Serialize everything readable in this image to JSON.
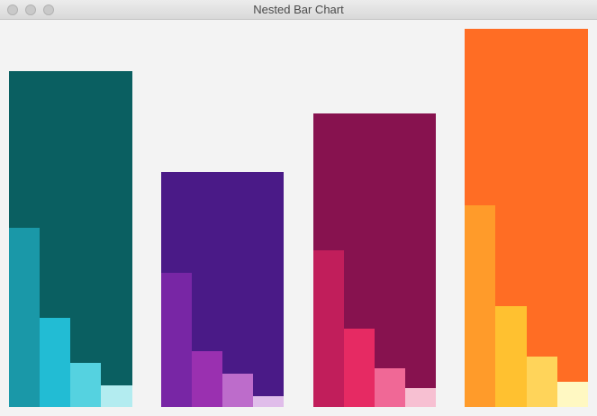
{
  "window": {
    "title": "Nested Bar Chart",
    "buttons": [
      "close",
      "minimize",
      "zoom"
    ]
  },
  "chart_data": {
    "type": "bar",
    "title": "Nested Bar Chart",
    "categories": [
      "",
      "",
      "",
      ""
    ],
    "ylim": [
      0,
      420
    ],
    "groups": [
      {
        "total": 373,
        "total_color": "#0a5f61",
        "parts": [
          199,
          99,
          49,
          24
        ],
        "part_colors": [
          "#1a98a8",
          "#22bcd4",
          "#55d2e0",
          "#b3ecf0"
        ]
      },
      {
        "total": 261,
        "total_color": "#4a1a87",
        "parts": [
          149,
          62,
          37,
          12
        ],
        "part_colors": [
          "#7826a5",
          "#9a30b0",
          "#bd6ccb",
          "#e0bdea"
        ]
      },
      {
        "total": 326,
        "total_color": "#87124f",
        "parts": [
          174,
          87,
          43,
          21
        ],
        "part_colors": [
          "#c11e5b",
          "#e62a63",
          "#f06896",
          "#f7c0d2"
        ]
      },
      {
        "total": 420,
        "total_color": "#ff6d24",
        "parts": [
          224,
          112,
          56,
          28
        ],
        "part_colors": [
          "#ff9b2a",
          "#ffc130",
          "#ffd45a",
          "#fff8c2"
        ]
      }
    ]
  }
}
